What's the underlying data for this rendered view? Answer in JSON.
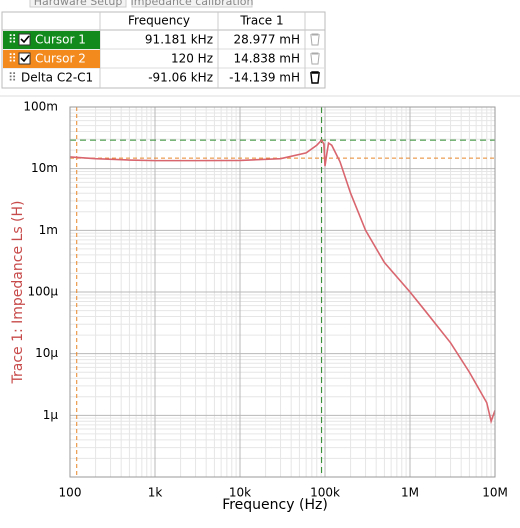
{
  "tabs": [
    "Hardware Setup",
    "Impedance calibration"
  ],
  "cursor_table": {
    "columns": [
      "Frequency",
      "Trace 1"
    ],
    "rows": [
      {
        "label": "Cursor 1",
        "frequency": "91.181 kHz",
        "trace": "28.977 mH"
      },
      {
        "label": "Cursor 2",
        "frequency": "120 Hz",
        "trace": "14.838 mH"
      },
      {
        "label": "Delta C2-C1",
        "frequency": "-91.06 kHz",
        "trace": "-14.139 mH"
      }
    ]
  },
  "chart_data": {
    "type": "line",
    "x_label": "Frequency (Hz)",
    "y_label": "Trace 1: Impedance Ls (H)",
    "log_x": true,
    "log_y": true,
    "grid": true,
    "minor_grid": true,
    "xlim": [
      100,
      10000000
    ],
    "xticks": [
      {
        "value": 100,
        "label": "100"
      },
      {
        "value": 1000,
        "label": "1k"
      },
      {
        "value": 10000,
        "label": "10k"
      },
      {
        "value": 100000,
        "label": "100k"
      },
      {
        "value": 1000000,
        "label": "1M"
      },
      {
        "value": 10000000,
        "label": "10M"
      }
    ],
    "ylim": [
      1e-07,
      0.1
    ],
    "yticks": [
      {
        "value": 0.1,
        "label": "100m"
      },
      {
        "value": 0.01,
        "label": "10m"
      },
      {
        "value": 0.001,
        "label": "1m"
      },
      {
        "value": 0.0001,
        "label": "100µ"
      },
      {
        "value": 1e-05,
        "label": "10µ"
      },
      {
        "value": 1e-06,
        "label": "1µ"
      }
    ],
    "x": [
      100,
      200,
      500,
      1000,
      3000,
      10000,
      30000,
      60000,
      80000,
      91181,
      97000,
      100000,
      104000,
      110000,
      120000,
      150000,
      200000,
      300000,
      500000,
      1000000,
      1500000,
      3000000,
      5000000,
      8000000,
      9000000,
      10000000
    ],
    "series": [
      {
        "color": "#d9666f",
        "values": [
          0.0155,
          0.0145,
          0.0138,
          0.0135,
          0.0135,
          0.0136,
          0.0145,
          0.018,
          0.024,
          0.029,
          0.025,
          0.011,
          0.016,
          0.026,
          0.024,
          0.013,
          0.004,
          0.001,
          0.0003,
          0.0001,
          5e-05,
          1.5e-05,
          5e-06,
          1.6e-06,
          8e-07,
          1.2e-06
        ]
      }
    ],
    "cursors": [
      {
        "x": 91181,
        "y": 0.028977,
        "color": "#2a8a2a"
      },
      {
        "x": 120,
        "y": 0.014838,
        "color": "#e8862a"
      }
    ]
  }
}
